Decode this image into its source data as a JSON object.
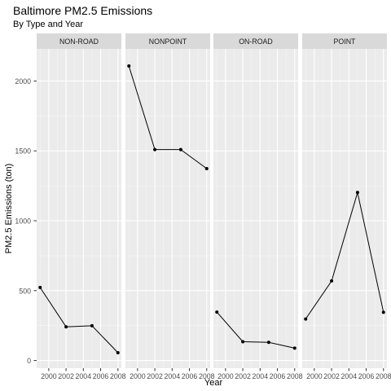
{
  "chart_data": {
    "type": "line",
    "title": "Baltimore PM2.5 Emissions",
    "subtitle": "By Type and Year",
    "xlabel": "Year",
    "ylabel": "PM2.5 Emissions (ton)",
    "x": [
      1999,
      2002,
      2005,
      2008
    ],
    "x_ticks": [
      2000,
      2002,
      2004,
      2006,
      2008
    ],
    "x_tick_labels": [
      "2000",
      "2002",
      "2004",
      "2006",
      "2008"
    ],
    "xlim": [
      1998.6,
      2008.4
    ],
    "y_ticks": [
      0,
      500,
      1000,
      1500,
      2000
    ],
    "y_tick_labels": [
      "0",
      "500",
      "1000",
      "1500",
      "2000"
    ],
    "ylim": [
      -55,
      2230
    ],
    "grid": true,
    "colors": {
      "panel_bg": "#ebebeb",
      "strip_bg": "#d9d9d9",
      "grid_major": "#ffffff",
      "line": "#000000"
    },
    "facets": [
      {
        "name": "NON-ROAD",
        "values": [
          522.94,
          240.85,
          248.93,
          55.82
        ]
      },
      {
        "name": "NONPOINT",
        "values": [
          2107.63,
          1509.5,
          1509.5,
          1373.21
        ]
      },
      {
        "name": "ON-ROAD",
        "values": [
          346.82,
          134.31,
          130.43,
          88.28
        ]
      },
      {
        "name": "POINT",
        "values": [
          296.8,
          569.26,
          1202.49,
          344.98
        ]
      }
    ]
  }
}
